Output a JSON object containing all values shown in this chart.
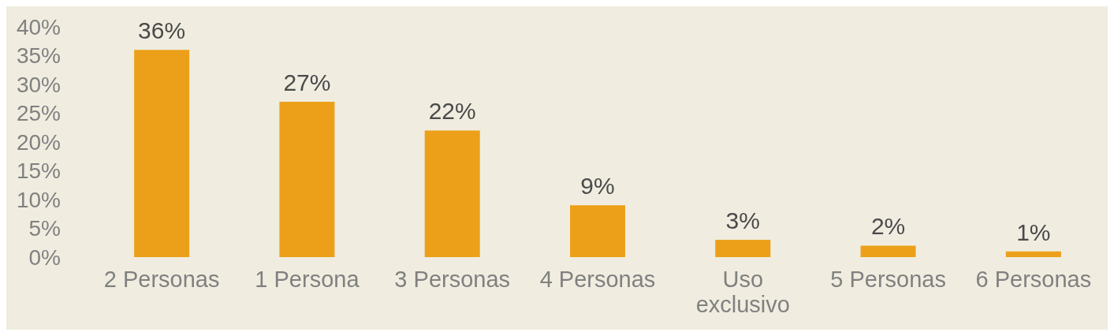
{
  "chart_data": {
    "type": "bar",
    "categories": [
      "2 Personas",
      "1 Persona",
      "3 Personas",
      "4 Personas",
      "Uso exclusivo",
      "5 Personas",
      "6 Personas"
    ],
    "values": [
      36,
      27,
      22,
      9,
      3,
      2,
      1
    ],
    "color": "#eca019",
    "ylim": [
      0,
      40
    ],
    "yticks": [
      {
        "value": 0,
        "label": "0%"
      },
      {
        "value": 5,
        "label": "5%"
      },
      {
        "value": 10,
        "label": "10%"
      },
      {
        "value": 15,
        "label": "15%"
      },
      {
        "value": 20,
        "label": "20%"
      },
      {
        "value": 25,
        "label": "25%"
      },
      {
        "value": 30,
        "label": "30%"
      },
      {
        "value": 35,
        "label": "35%"
      },
      {
        "value": 40,
        "label": "40%"
      }
    ],
    "value_labels": [
      "36%",
      "27%",
      "22%",
      "9%",
      "3%",
      "2%",
      "1%"
    ],
    "grid": false,
    "legend": false
  }
}
